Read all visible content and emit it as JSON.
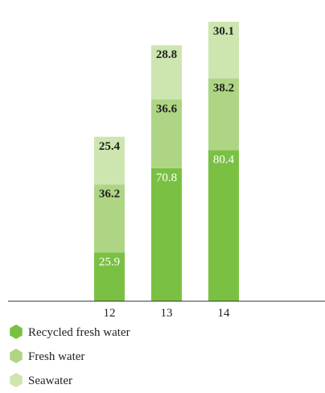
{
  "chart_data": {
    "type": "bar",
    "stacked": true,
    "categories": [
      "12",
      "13",
      "14"
    ],
    "series": [
      {
        "name": "Recycled fresh water",
        "values": [
          25.9,
          70.8,
          80.4
        ],
        "color": "#7ac143",
        "label_style": "light"
      },
      {
        "name": "Fresh water",
        "values": [
          36.2,
          36.6,
          38.2
        ],
        "color": "#aed584",
        "label_style": "bold"
      },
      {
        "name": "Seawater",
        "values": [
          25.4,
          28.8,
          30.1
        ],
        "color": "#cde6b0",
        "label_style": "bold"
      }
    ],
    "title": "",
    "xlabel": "",
    "ylabel": "",
    "ylim": [
      0,
      150
    ],
    "grid": false,
    "legend_placement": "bottom-left",
    "axis_color": "#333333"
  }
}
